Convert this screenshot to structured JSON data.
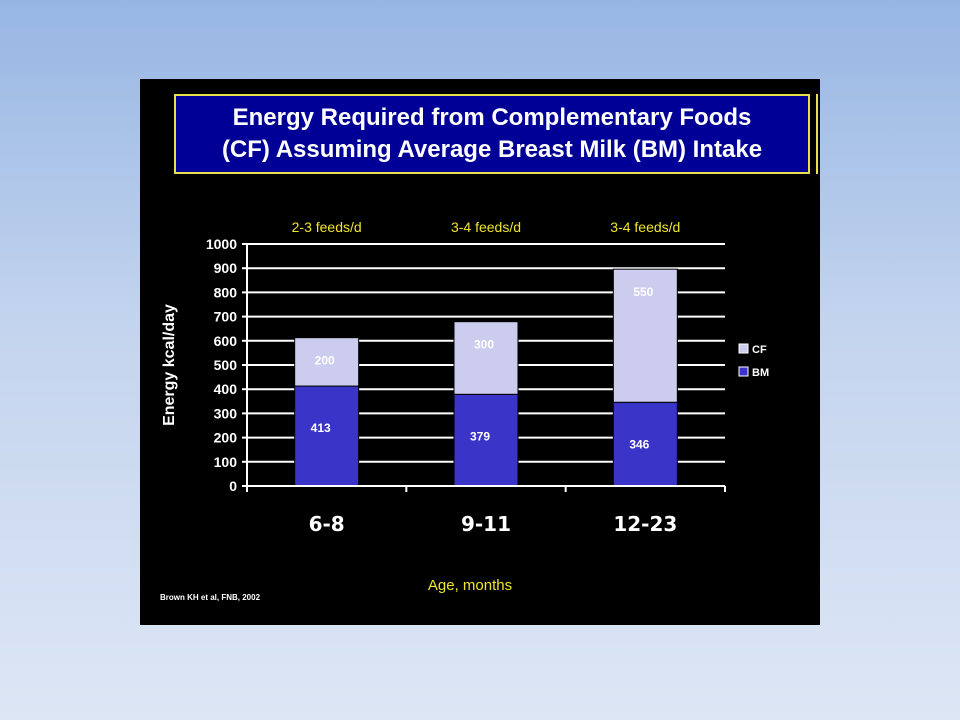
{
  "title": {
    "line1": "Energy Required from Complementary Foods",
    "line2": "(CF) Assuming Average Breast Milk (BM) Intake"
  },
  "source": "Brown KH et al, FNB, 2002",
  "colors": {
    "bm": "#3a34c8",
    "cf": "#ccccee",
    "axis_text": "#ffffff",
    "annotation": "#f0e52c",
    "title_bg": "#000096",
    "title_border": "#e8e04a"
  },
  "chart_data": {
    "type": "bar",
    "stacked": true,
    "categories": [
      "6-8",
      "9-11",
      "12-23"
    ],
    "series": [
      {
        "name": "BM",
        "values": [
          413,
          379,
          346
        ],
        "labels": [
          "413",
          "379",
          "346"
        ]
      },
      {
        "name": "CF",
        "values": [
          200,
          300,
          550
        ],
        "labels": [
          "200",
          "300",
          "550"
        ]
      }
    ],
    "annotations": [
      "2-3 feeds/d",
      "3-4 feeds/d",
      "3-4 feeds/d"
    ],
    "xlabel": "Age, months",
    "ylabel": "Energy kcal/day",
    "ylim": [
      0,
      1000
    ],
    "yticks": [
      0,
      100,
      200,
      300,
      400,
      500,
      600,
      700,
      800,
      900,
      1000
    ],
    "grid": true,
    "legend": [
      "CF",
      "BM"
    ],
    "legend_position": "right"
  }
}
